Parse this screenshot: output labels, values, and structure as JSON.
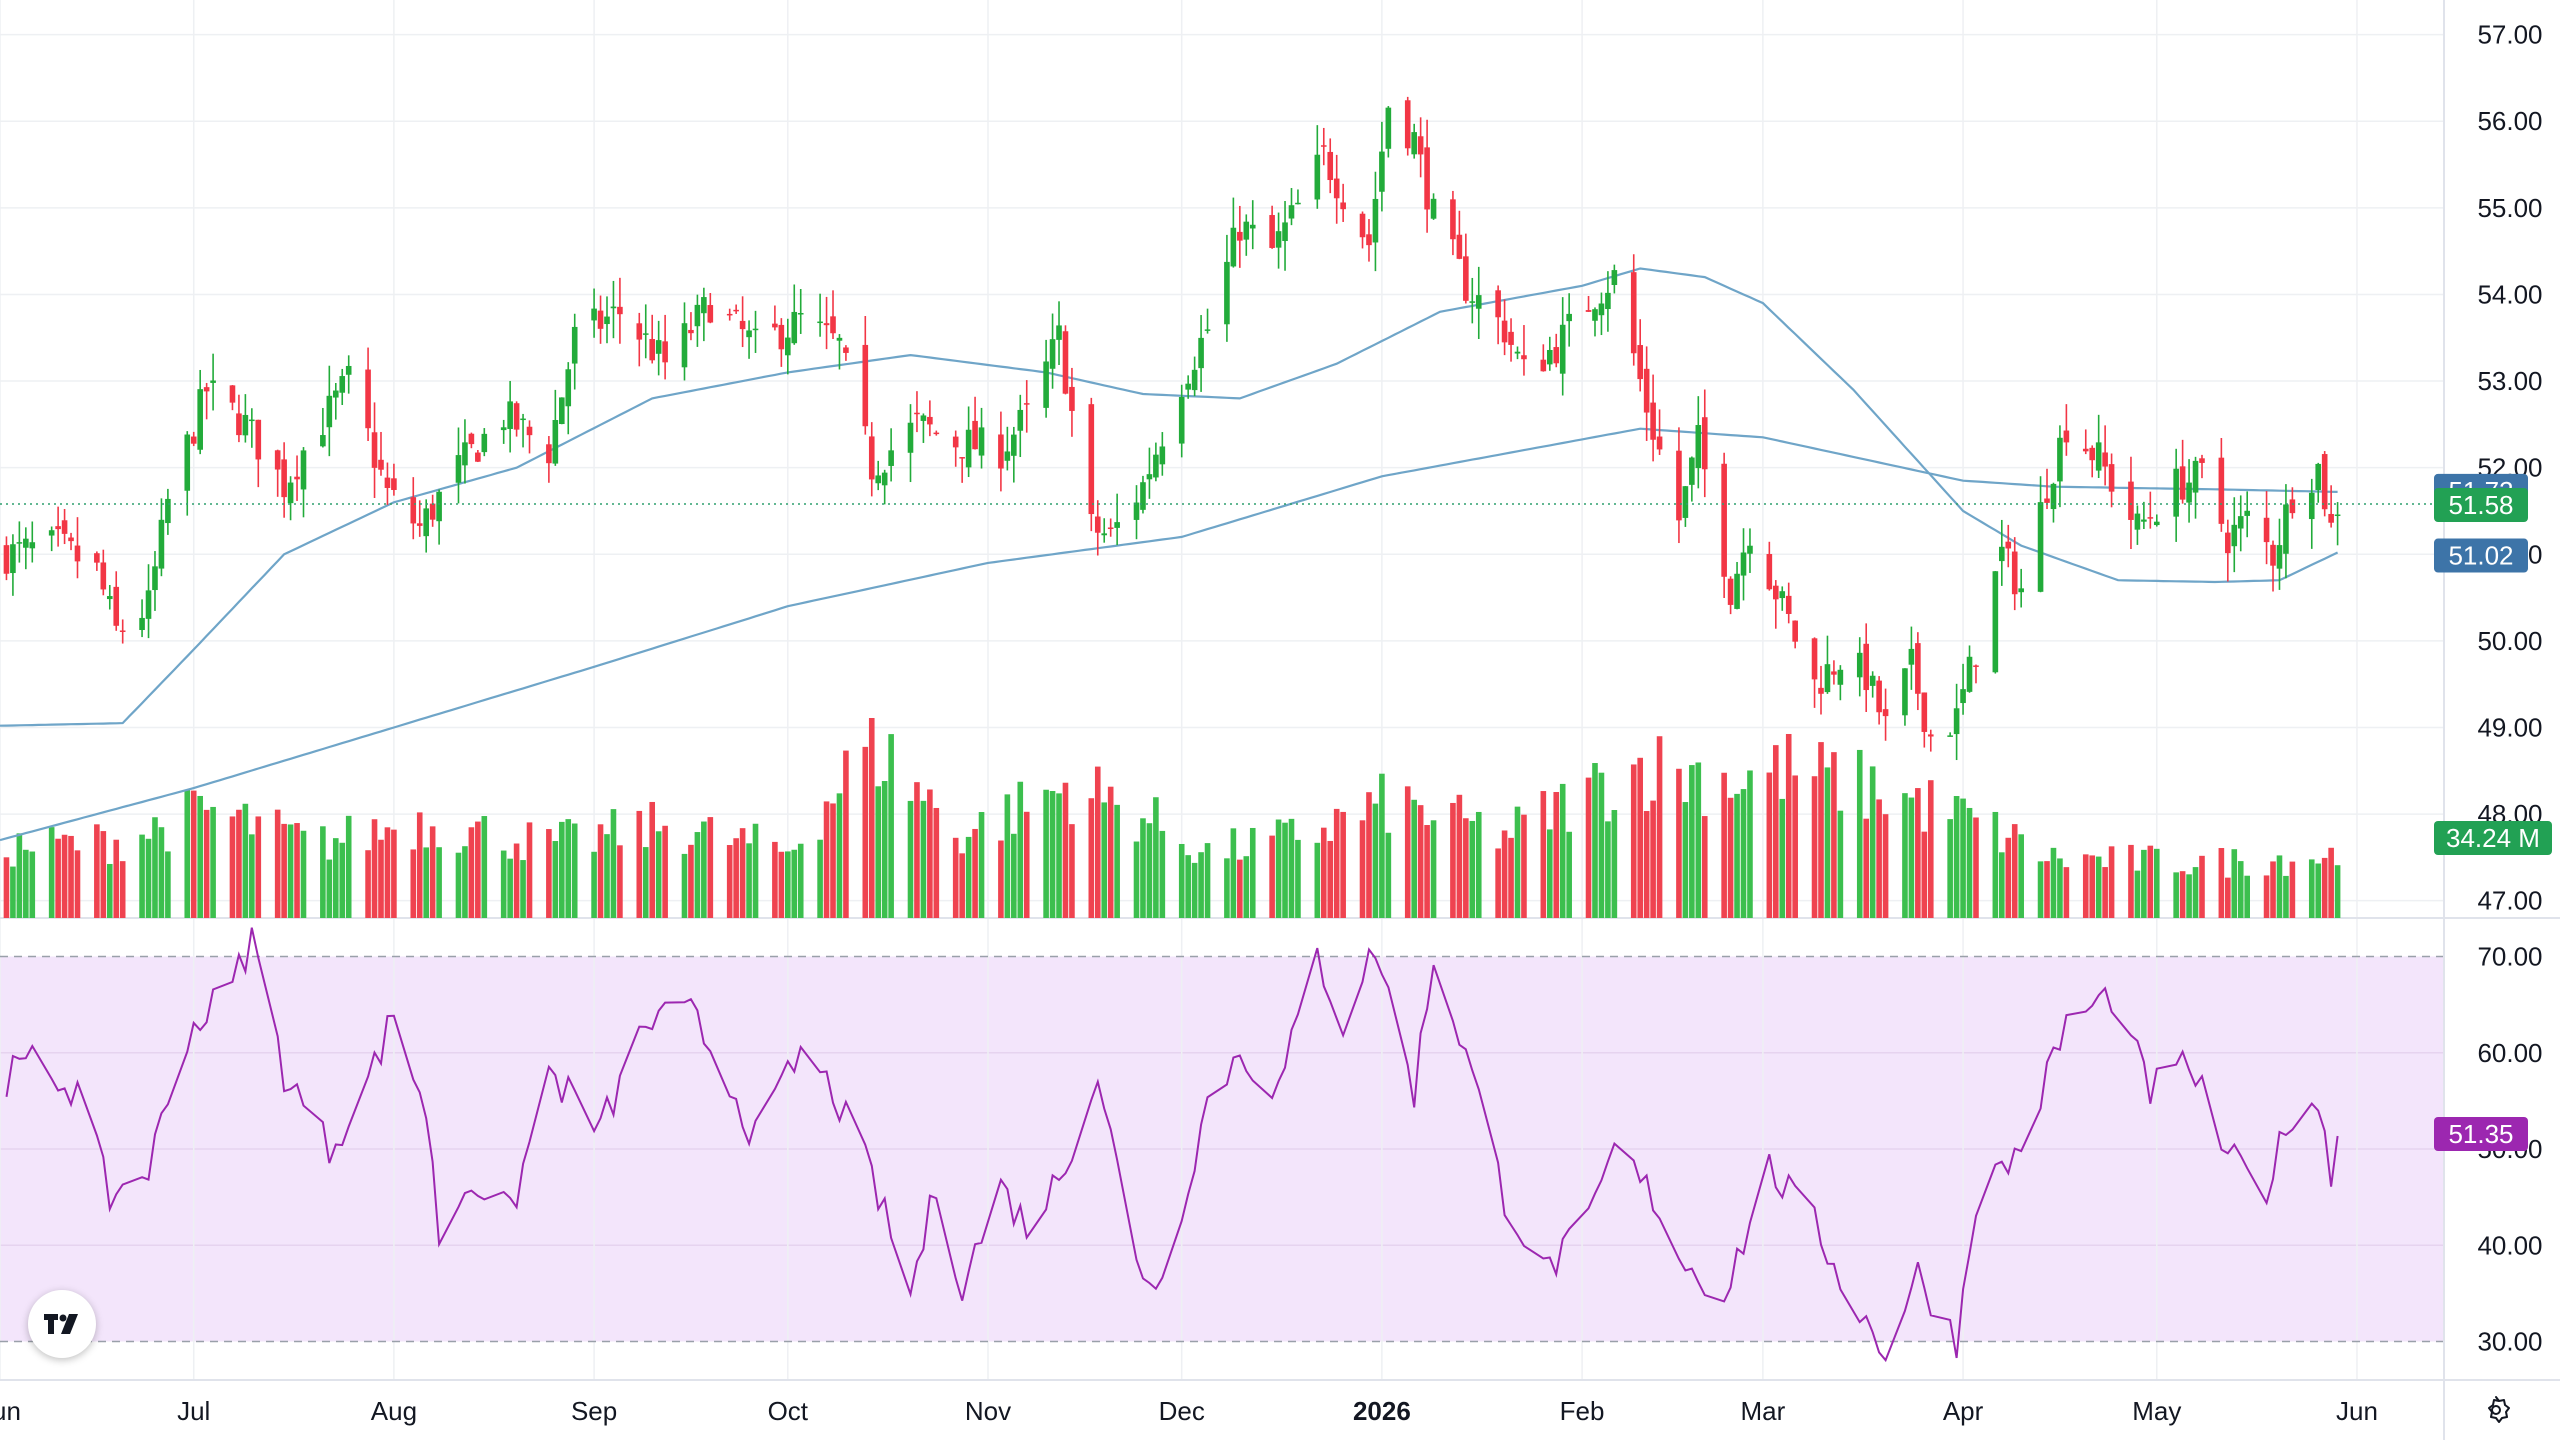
{
  "chart_data": [
    {
      "type": "candlestick",
      "title": "",
      "ylim": [
        46.8,
        57.4
      ],
      "y_ticks": [
        "57.00",
        "56.00",
        "55.00",
        "54.00",
        "53.00",
        "52.00",
        "51.00",
        "50.00",
        "49.00",
        "48.00",
        "47.00"
      ],
      "x_tick_labels": [
        "Jun",
        "Jul",
        "Aug",
        "Sep",
        "Oct",
        "Nov",
        "Dec",
        "2026",
        "Feb",
        "Mar",
        "Apr",
        "May",
        "Jun"
      ],
      "x_tick_dates": [
        "2025-06-01",
        "2025-07-01",
        "2025-08-01",
        "2025-09-01",
        "2025-10-01",
        "2025-11-01",
        "2025-12-01",
        "2026-01-01",
        "2026-02-01",
        "2026-03-01",
        "2026-04-01",
        "2026-05-01",
        "2026-06-01"
      ],
      "x_range": [
        "2025-06-01",
        "2026-06-12"
      ],
      "close_anchors": [
        [
          "2025-06-02",
          51.0
        ],
        [
          "2025-06-10",
          51.1
        ],
        [
          "2025-06-16",
          50.8
        ],
        [
          "2025-06-19",
          50.1
        ],
        [
          "2025-06-24",
          50.4
        ],
        [
          "2025-06-27",
          51.6
        ],
        [
          "2025-07-03",
          52.9
        ],
        [
          "2025-07-09",
          52.5
        ],
        [
          "2025-07-15",
          51.8
        ],
        [
          "2025-07-18",
          52.2
        ],
        [
          "2025-07-25",
          53.0
        ],
        [
          "2025-07-31",
          51.7
        ],
        [
          "2025-08-05",
          51.3
        ],
        [
          "2025-08-11",
          52.0
        ],
        [
          "2025-08-18",
          52.6
        ],
        [
          "2025-08-25",
          52.2
        ],
        [
          "2025-08-29",
          53.5
        ],
        [
          "2025-09-05",
          53.8
        ],
        [
          "2025-09-12",
          53.2
        ],
        [
          "2025-09-19",
          53.9
        ],
        [
          "2025-09-26",
          53.4
        ],
        [
          "2025-10-03",
          53.7
        ],
        [
          "2025-10-09",
          53.4
        ],
        [
          "2025-10-14",
          52.0
        ],
        [
          "2025-10-21",
          52.5
        ],
        [
          "2025-10-27",
          52.3
        ],
        [
          "2025-11-03",
          52.2
        ],
        [
          "2025-11-07",
          52.6
        ],
        [
          "2025-11-12",
          53.5
        ],
        [
          "2025-11-17",
          51.3
        ],
        [
          "2025-11-20",
          51.2
        ],
        [
          "2025-11-25",
          51.8
        ],
        [
          "2025-12-01",
          53.0
        ],
        [
          "2025-12-05",
          53.6
        ],
        [
          "2025-12-10",
          54.8
        ],
        [
          "2025-12-15",
          54.5
        ],
        [
          "2025-12-19",
          55.0
        ],
        [
          "2025-12-23",
          55.6
        ],
        [
          "2025-12-30",
          54.6
        ],
        [
          "2026-01-02",
          56.2
        ],
        [
          "2026-01-06",
          55.8
        ],
        [
          "2026-01-09",
          54.9
        ],
        [
          "2026-01-14",
          54.1
        ],
        [
          "2026-01-20",
          53.6
        ],
        [
          "2026-01-23",
          53.1
        ],
        [
          "2026-01-28",
          53.4
        ],
        [
          "2026-02-03",
          54.0
        ],
        [
          "2026-02-06",
          54.2
        ],
        [
          "2026-02-11",
          52.7
        ],
        [
          "2026-02-16",
          51.4
        ],
        [
          "2026-02-19",
          52.3
        ],
        [
          "2026-02-24",
          50.6
        ],
        [
          "2026-02-27",
          51.3
        ],
        [
          "2026-03-04",
          50.4
        ],
        [
          "2026-03-09",
          49.5
        ],
        [
          "2026-03-13",
          49.8
        ],
        [
          "2026-03-17",
          49.6
        ],
        [
          "2026-03-20",
          49.0
        ],
        [
          "2026-03-24",
          49.7
        ],
        [
          "2026-03-27",
          48.9
        ],
        [
          "2026-03-31",
          49.1
        ],
        [
          "2026-04-03",
          49.9
        ],
        [
          "2026-04-07",
          51.0
        ],
        [
          "2026-04-10",
          50.6
        ],
        [
          "2026-04-14",
          51.8
        ],
        [
          "2026-04-17",
          52.5
        ],
        [
          "2026-04-22",
          52.1
        ],
        [
          "2026-04-28",
          51.3
        ],
        [
          "2026-05-04",
          51.8
        ],
        [
          "2026-05-08",
          51.9
        ],
        [
          "2026-05-12",
          51.2
        ],
        [
          "2026-05-15",
          51.4
        ],
        [
          "2026-05-19",
          51.0
        ],
        [
          "2026-05-22",
          51.7
        ],
        [
          "2026-05-26",
          52.0
        ],
        [
          "2026-05-28",
          51.3
        ],
        [
          "2026-05-29",
          51.58
        ]
      ],
      "sma_fast_anchors": [
        [
          "2025-06-01",
          49.02
        ],
        [
          "2025-06-20",
          49.05
        ],
        [
          "2025-07-01",
          49.9
        ],
        [
          "2025-07-15",
          51.0
        ],
        [
          "2025-08-01",
          51.6
        ],
        [
          "2025-08-20",
          52.0
        ],
        [
          "2025-09-10",
          52.8
        ],
        [
          "2025-10-01",
          53.1
        ],
        [
          "2025-10-20",
          53.3
        ],
        [
          "2025-11-10",
          53.1
        ],
        [
          "2025-11-25",
          52.85
        ],
        [
          "2025-12-10",
          52.8
        ],
        [
          "2025-12-25",
          53.2
        ],
        [
          "2026-01-10",
          53.8
        ],
        [
          "2026-02-01",
          54.1
        ],
        [
          "2026-02-10",
          54.3
        ],
        [
          "2026-02-20",
          54.2
        ],
        [
          "2026-03-01",
          53.9
        ],
        [
          "2026-03-15",
          52.9
        ],
        [
          "2026-04-01",
          51.5
        ],
        [
          "2026-04-10",
          51.1
        ],
        [
          "2026-04-25",
          50.7
        ],
        [
          "2026-05-10",
          50.68
        ],
        [
          "2026-05-20",
          50.7
        ],
        [
          "2026-05-29",
          51.02
        ]
      ],
      "sma_slow_anchors": [
        [
          "2025-06-01",
          47.7
        ],
        [
          "2025-07-01",
          48.3
        ],
        [
          "2025-08-01",
          49.0
        ],
        [
          "2025-09-01",
          49.7
        ],
        [
          "2025-10-01",
          50.4
        ],
        [
          "2025-11-01",
          50.9
        ],
        [
          "2025-12-01",
          51.2
        ],
        [
          "2026-01-01",
          51.9
        ],
        [
          "2026-02-10",
          52.45
        ],
        [
          "2026-03-01",
          52.35
        ],
        [
          "2026-04-01",
          51.85
        ],
        [
          "2026-04-15",
          51.78
        ],
        [
          "2026-05-10",
          51.75
        ],
        [
          "2026-05-29",
          51.72
        ]
      ],
      "volume": {
        "label": "34.24 M",
        "last_value_m": 34.24,
        "relative_anchors": [
          [
            "2025-06-02",
            0.38
          ],
          [
            "2025-06-20",
            0.42
          ],
          [
            "2025-07-03",
            0.58
          ],
          [
            "2025-07-20",
            0.4
          ],
          [
            "2025-08-05",
            0.52
          ],
          [
            "2025-08-25",
            0.4
          ],
          [
            "2025-09-12",
            0.5
          ],
          [
            "2025-10-01",
            0.36
          ],
          [
            "2025-10-14",
            0.95
          ],
          [
            "2025-10-28",
            0.45
          ],
          [
            "2025-11-14",
            0.72
          ],
          [
            "2025-11-25",
            0.55
          ],
          [
            "2025-12-05",
            0.35
          ],
          [
            "2025-12-20",
            0.45
          ],
          [
            "2026-01-02",
            0.62
          ],
          [
            "2026-01-20",
            0.45
          ],
          [
            "2026-02-10",
            0.82
          ],
          [
            "2026-02-25",
            0.75
          ],
          [
            "2026-03-05",
            0.8
          ],
          [
            "2026-03-20",
            0.68
          ],
          [
            "2026-04-01",
            0.55
          ],
          [
            "2026-04-15",
            0.32
          ],
          [
            "2026-05-10",
            0.3
          ],
          [
            "2026-05-29",
            0.34
          ]
        ]
      },
      "last_price_label": "51.58",
      "sma_slow_label": "51.72",
      "sma_fast_label": "51.02",
      "colors": {
        "up": "#22ab3a",
        "down": "#f23645",
        "up_volume": "#3cbf4e",
        "down_volume": "#ef4350",
        "sma": "#6fa5c8",
        "last_price_line": "#2e9f6e",
        "sma_label_bg": "#3d74a8",
        "price_label_bg": "#22a154",
        "volume_label_bg": "#22a154"
      },
      "grid": true
    },
    {
      "type": "line",
      "title": "",
      "ylim": [
        26,
        74
      ],
      "y_ticks": [
        "70.00",
        "60.00",
        "50.00",
        "40.00",
        "30.00"
      ],
      "band": [
        30,
        70
      ],
      "last_value_label": "51.35",
      "anchors": [
        [
          "2025-06-01",
          57
        ],
        [
          "2025-06-06",
          59
        ],
        [
          "2025-06-13",
          56
        ],
        [
          "2025-06-18",
          45
        ],
        [
          "2025-06-24",
          48
        ],
        [
          "2025-06-30",
          62
        ],
        [
          "2025-07-07",
          67
        ],
        [
          "2025-07-10",
          72
        ],
        [
          "2025-07-15",
          58
        ],
        [
          "2025-07-22",
          50
        ],
        [
          "2025-07-28",
          57
        ],
        [
          "2025-08-01",
          64
        ],
        [
          "2025-08-06",
          54
        ],
        [
          "2025-08-08",
          41
        ],
        [
          "2025-08-13",
          47
        ],
        [
          "2025-08-19",
          43
        ],
        [
          "2025-08-25",
          58
        ],
        [
          "2025-09-02",
          52
        ],
        [
          "2025-09-09",
          63
        ],
        [
          "2025-09-16",
          64
        ],
        [
          "2025-09-22",
          57
        ],
        [
          "2025-09-26",
          51
        ],
        [
          "2025-10-03",
          60
        ],
        [
          "2025-10-08",
          56
        ],
        [
          "2025-10-14",
          47
        ],
        [
          "2025-10-20",
          35
        ],
        [
          "2025-10-24",
          46
        ],
        [
          "2025-10-28",
          36
        ],
        [
          "2025-11-03",
          46
        ],
        [
          "2025-11-07",
          42
        ],
        [
          "2025-11-12",
          47
        ],
        [
          "2025-11-18",
          58
        ],
        [
          "2025-11-24",
          38
        ],
        [
          "2025-11-28",
          36
        ],
        [
          "2025-12-05",
          55
        ],
        [
          "2025-12-10",
          60
        ],
        [
          "2025-12-16",
          56
        ],
        [
          "2025-12-22",
          70
        ],
        [
          "2025-12-26",
          63
        ],
        [
          "2025-12-31",
          71
        ],
        [
          "2026-01-06",
          56
        ],
        [
          "2026-01-09",
          70
        ],
        [
          "2026-01-14",
          60
        ],
        [
          "2026-01-20",
          45
        ],
        [
          "2026-01-26",
          37
        ],
        [
          "2026-02-02",
          42
        ],
        [
          "2026-02-06",
          50
        ],
        [
          "2026-02-12",
          45
        ],
        [
          "2026-02-17",
          38
        ],
        [
          "2026-02-23",
          35
        ],
        [
          "2026-03-02",
          48
        ],
        [
          "2026-03-09",
          42
        ],
        [
          "2026-03-16",
          33
        ],
        [
          "2026-03-20",
          29
        ],
        [
          "2026-03-25",
          37
        ],
        [
          "2026-03-31",
          30
        ],
        [
          "2026-04-03",
          45
        ],
        [
          "2026-04-10",
          50
        ],
        [
          "2026-04-17",
          63
        ],
        [
          "2026-04-24",
          66
        ],
        [
          "2026-04-30",
          56
        ],
        [
          "2026-05-06",
          59
        ],
        [
          "2026-05-12",
          49
        ],
        [
          "2026-05-18",
          46
        ],
        [
          "2026-05-22",
          54
        ],
        [
          "2026-05-26",
          55
        ],
        [
          "2026-05-28",
          47
        ],
        [
          "2026-05-29",
          51.35
        ]
      ],
      "colors": {
        "line": "#9c27b0",
        "band_fill": "#f3e5fb",
        "label_bg": "#9c27b0"
      },
      "grid": true
    }
  ],
  "icons": {
    "logo": "tradingview-logo-icon",
    "settings": "gear-icon"
  }
}
